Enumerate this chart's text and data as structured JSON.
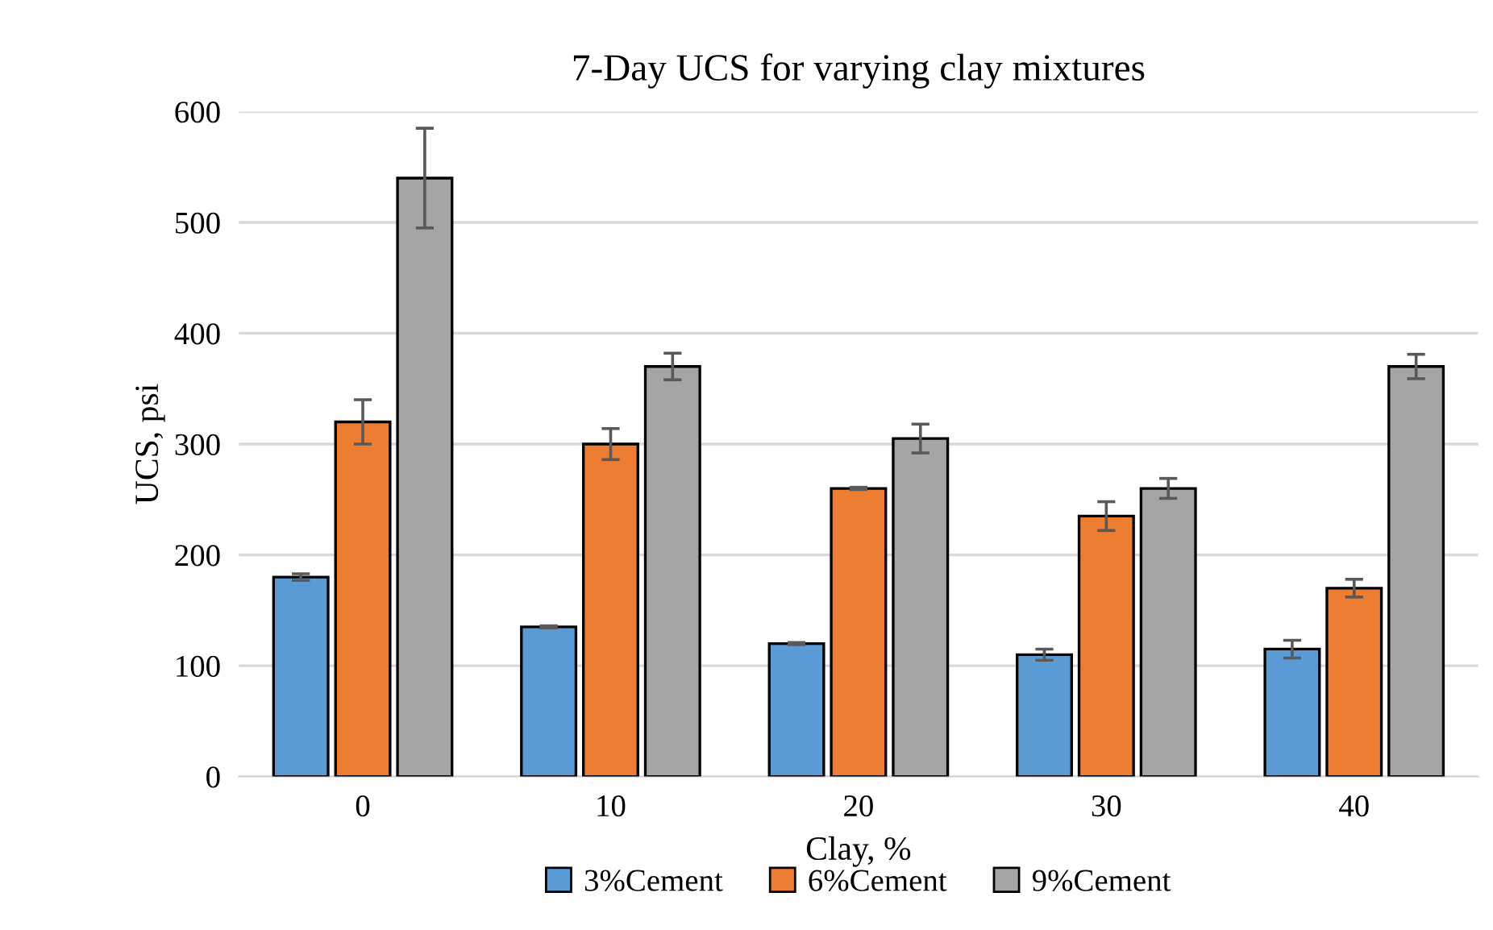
{
  "chart_data": {
    "type": "bar",
    "title": "7-Day UCS for varying clay mixtures",
    "xlabel": "Clay, %",
    "ylabel": "UCS, psi",
    "categories": [
      "0",
      "10",
      "20",
      "30",
      "40"
    ],
    "series": [
      {
        "name": "3%Cement",
        "color": "#5b9bd5",
        "values": [
          180,
          135,
          120,
          110,
          115
        ],
        "errors": [
          3,
          1,
          1,
          5,
          8
        ]
      },
      {
        "name": "6%Cement",
        "color": "#ed7d31",
        "values": [
          320,
          300,
          260,
          235,
          170
        ],
        "errors": [
          20,
          14,
          1,
          13,
          8
        ]
      },
      {
        "name": "9%Cement",
        "color": "#a5a5a5",
        "values": [
          540,
          370,
          305,
          260,
          370
        ],
        "errors": [
          45,
          12,
          13,
          9,
          11
        ]
      }
    ],
    "ylim": [
      0,
      600
    ],
    "yticks": [
      0,
      100,
      200,
      300,
      400,
      500,
      600
    ],
    "grid": "y",
    "legend": "bottom"
  }
}
